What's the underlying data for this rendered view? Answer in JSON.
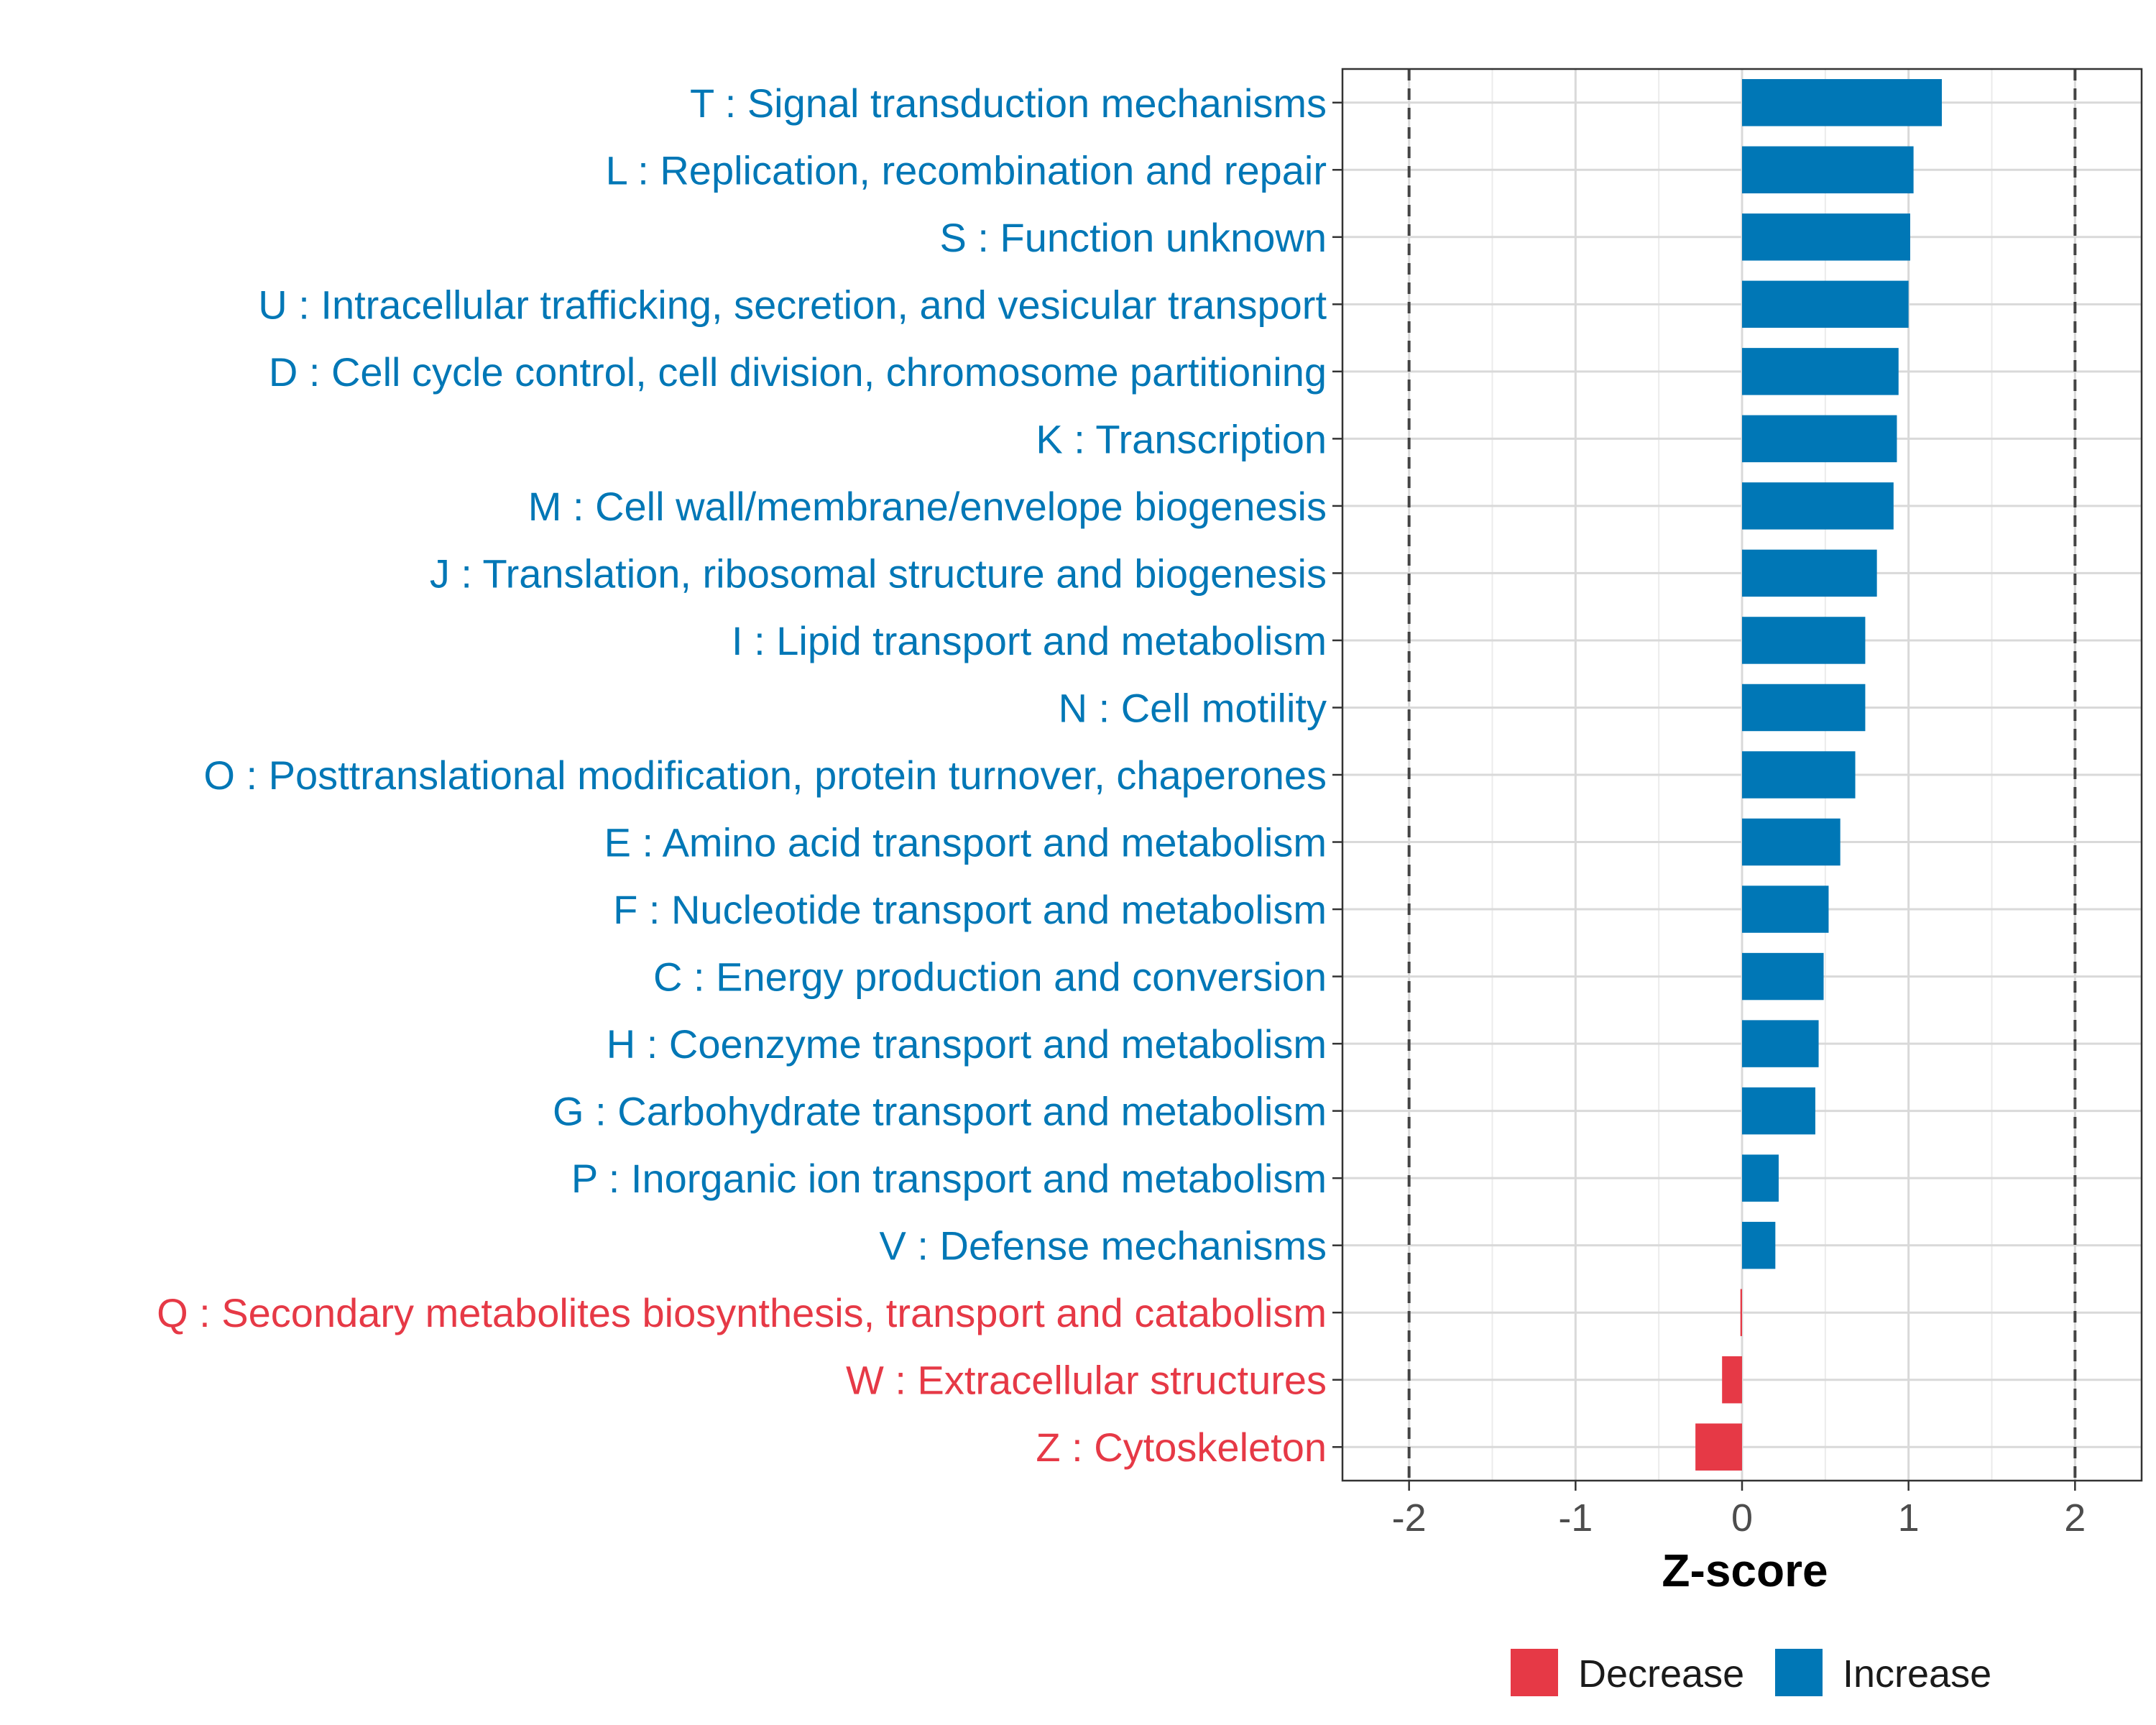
{
  "chart_data": {
    "type": "bar",
    "orientation": "horizontal",
    "xlabel": "Z-score",
    "ylabel": "",
    "xlim": [
      -2.4,
      2.4
    ],
    "xticks": [
      -2,
      -1,
      0,
      1,
      2
    ],
    "xtick_labels": [
      "-2",
      "-1",
      "0",
      "1",
      "2"
    ],
    "reference_lines": [
      -2,
      2
    ],
    "grid": true,
    "colors": {
      "Decrease": "#e63946",
      "Increase": "#0077b6"
    },
    "legend": {
      "position": "bottom",
      "entries": [
        {
          "label": "Decrease",
          "color": "#e63946"
        },
        {
          "label": "Increase",
          "color": "#0077b6"
        }
      ]
    },
    "categories": [
      "T : Signal transduction mechanisms",
      "L : Replication, recombination and repair",
      "S : Function unknown",
      "U : Intracellular trafficking, secretion, and vesicular transport",
      "D : Cell cycle control, cell division, chromosome partitioning",
      "K : Transcription",
      "M : Cell wall/membrane/envelope biogenesis",
      "J : Translation, ribosomal structure and biogenesis",
      "I : Lipid transport and metabolism",
      "N : Cell motility",
      "O : Posttranslational modification, protein turnover, chaperones",
      "E : Amino acid transport and metabolism",
      "F : Nucleotide transport and metabolism",
      "C : Energy production and conversion",
      "H : Coenzyme transport and metabolism",
      "G : Carbohydrate transport and metabolism",
      "P : Inorganic ion transport and metabolism",
      "V : Defense mechanisms",
      "Q : Secondary metabolites biosynthesis, transport and catabolism",
      "W : Extracellular structures",
      "Z : Cytoskeleton"
    ],
    "values": [
      1.2,
      1.03,
      1.01,
      1.0,
      0.94,
      0.93,
      0.91,
      0.81,
      0.74,
      0.74,
      0.68,
      0.59,
      0.52,
      0.49,
      0.46,
      0.44,
      0.22,
      0.2,
      -0.01,
      -0.12,
      -0.28
    ],
    "groups": [
      "Increase",
      "Increase",
      "Increase",
      "Increase",
      "Increase",
      "Increase",
      "Increase",
      "Increase",
      "Increase",
      "Increase",
      "Increase",
      "Increase",
      "Increase",
      "Increase",
      "Increase",
      "Increase",
      "Increase",
      "Increase",
      "Decrease",
      "Decrease",
      "Decrease"
    ]
  }
}
